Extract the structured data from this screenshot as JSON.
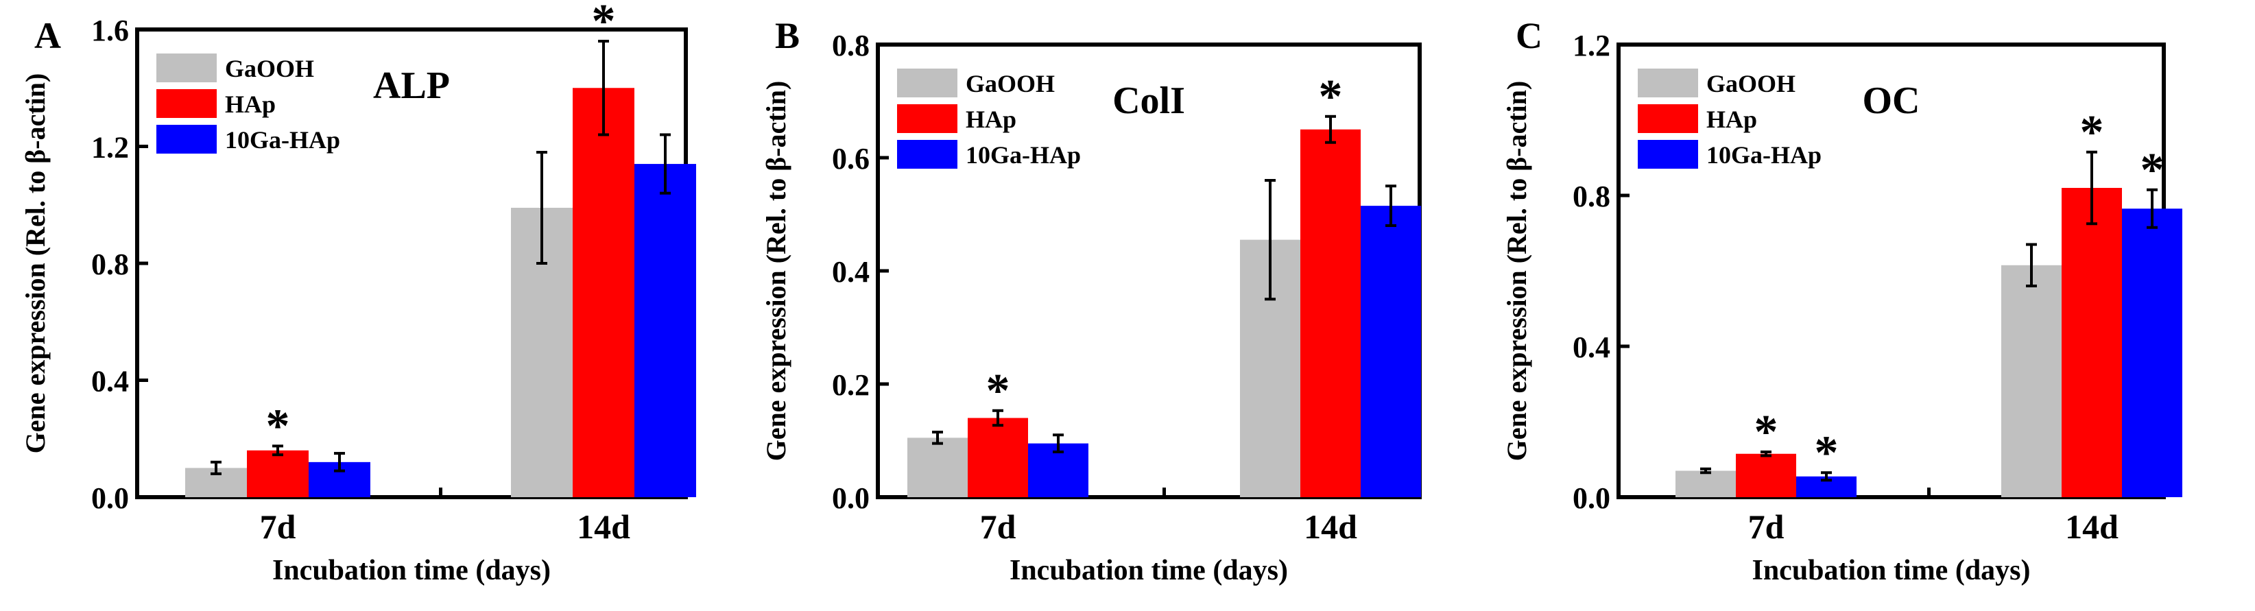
{
  "chart_data": [
    {
      "type": "bar",
      "panel_letter": "A",
      "title": "ALP",
      "title_color": "#ff0000",
      "xlabel": "Incubation time (days)",
      "ylabel": "Gene expression (Rel. to β-actin)",
      "ylim": [
        0,
        1.6
      ],
      "y_ticks": [
        "0.0",
        "0.4",
        "0.8",
        "1.2",
        "1.6"
      ],
      "categories": [
        "7d",
        "14d"
      ],
      "legend_position": "top-left",
      "series": [
        {
          "name": "GaOOH",
          "color": "#c0c0c0",
          "values": [
            0.1,
            0.99
          ],
          "errors": [
            0.02,
            0.19
          ],
          "sig": [
            false,
            false
          ]
        },
        {
          "name": "HAp",
          "color": "#ff0000",
          "values": [
            0.16,
            1.4
          ],
          "errors": [
            0.015,
            0.16
          ],
          "sig": [
            true,
            true
          ]
        },
        {
          "name": "10Ga-HAp",
          "color": "#0000ff",
          "values": [
            0.12,
            1.14
          ],
          "errors": [
            0.03,
            0.1
          ],
          "sig": [
            false,
            false
          ]
        }
      ],
      "sig_marker": "*"
    },
    {
      "type": "bar",
      "panel_letter": "B",
      "title": "ColI",
      "title_color": "#ff0000",
      "xlabel": "Incubation time (days)",
      "ylabel": "Gene expression (Rel. to β-actin)",
      "ylim": [
        0,
        0.8
      ],
      "y_ticks": [
        "0.0",
        "0.2",
        "0.4",
        "0.6",
        "0.8"
      ],
      "categories": [
        "7d",
        "14d"
      ],
      "legend_position": "top-left",
      "series": [
        {
          "name": "GaOOH",
          "color": "#c0c0c0",
          "values": [
            0.105,
            0.455
          ],
          "errors": [
            0.01,
            0.105
          ],
          "sig": [
            false,
            false
          ]
        },
        {
          "name": "HAp",
          "color": "#ff0000",
          "values": [
            0.14,
            0.65
          ],
          "errors": [
            0.013,
            0.023
          ],
          "sig": [
            true,
            true
          ]
        },
        {
          "name": "10Ga-HAp",
          "color": "#0000ff",
          "values": [
            0.095,
            0.515
          ],
          "errors": [
            0.015,
            0.035
          ],
          "sig": [
            false,
            false
          ]
        }
      ],
      "sig_marker": "*"
    },
    {
      "type": "bar",
      "panel_letter": "C",
      "title": "OC",
      "title_color": "#ff0000",
      "xlabel": "Incubation time (days)",
      "ylabel": "Gene expression (Rel. to β-actin)",
      "ylim": [
        0,
        1.2
      ],
      "y_ticks": [
        "0.0",
        "0.4",
        "0.8",
        "1.2"
      ],
      "categories": [
        "7d",
        "14d"
      ],
      "legend_position": "top-left",
      "series": [
        {
          "name": "GaOOH",
          "color": "#c0c0c0",
          "values": [
            0.07,
            0.615
          ],
          "errors": [
            0.005,
            0.055
          ],
          "sig": [
            false,
            false
          ]
        },
        {
          "name": "HAp",
          "color": "#ff0000",
          "values": [
            0.115,
            0.82
          ],
          "errors": [
            0.005,
            0.095
          ],
          "sig": [
            true,
            true
          ]
        },
        {
          "name": "10Ga-HAp",
          "color": "#0000ff",
          "values": [
            0.055,
            0.765
          ],
          "errors": [
            0.01,
            0.05
          ],
          "sig": [
            true,
            true
          ]
        }
      ],
      "sig_marker": "*"
    }
  ]
}
